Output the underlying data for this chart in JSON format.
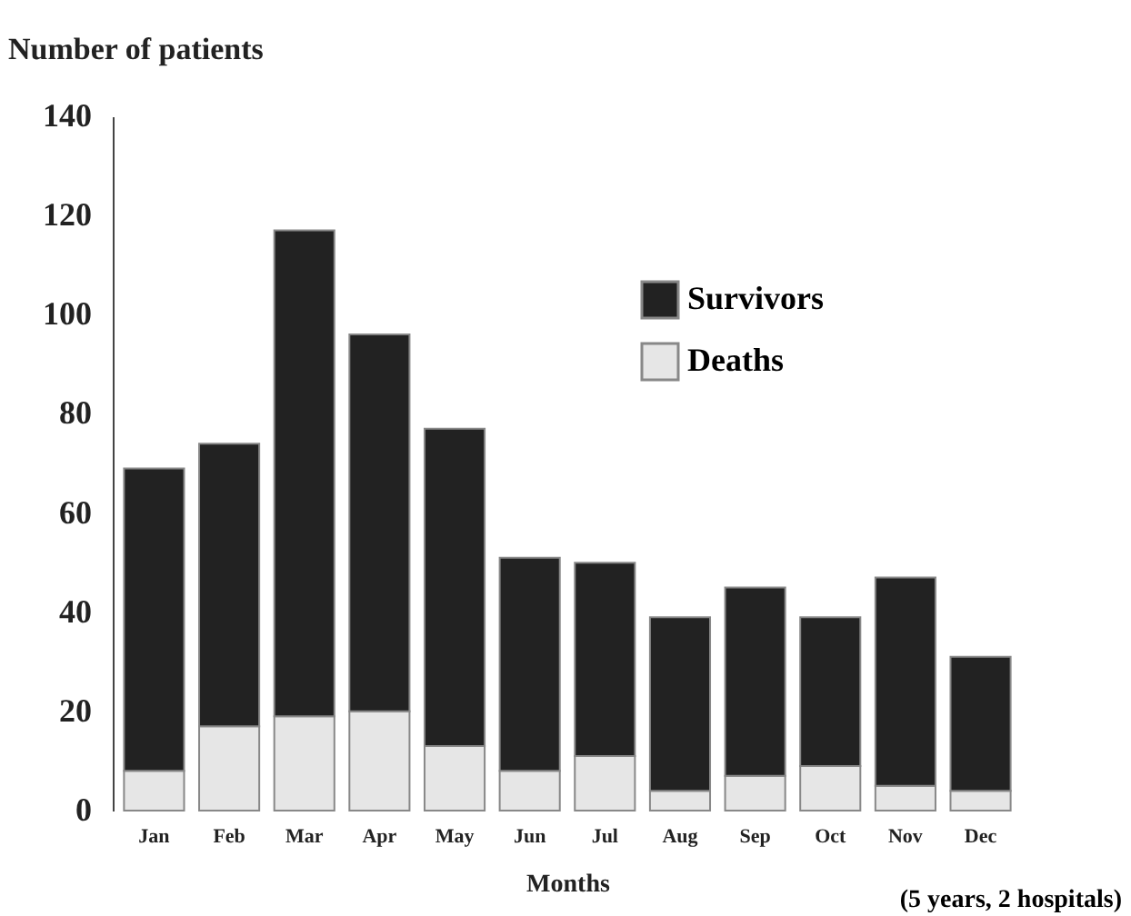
{
  "chart_data": {
    "type": "bar",
    "stacked": true,
    "xlabel": "Months",
    "ylabel": "Number of patients",
    "categories": [
      "Jan",
      "Feb",
      "Mar",
      "Apr",
      "May",
      "Jun",
      "Jul",
      "Aug",
      "Sep",
      "Oct",
      "Nov",
      "Dec"
    ],
    "series": [
      {
        "name": "Deaths",
        "color": "#e6e6e6",
        "values": [
          8,
          17,
          19,
          20,
          13,
          8,
          11,
          4,
          7,
          9,
          5,
          4
        ]
      },
      {
        "name": "Survivors",
        "color": "#222222",
        "values": [
          61,
          57,
          98,
          76,
          64,
          43,
          39,
          35,
          38,
          30,
          42,
          27
        ]
      }
    ],
    "ylim": [
      0,
      140
    ],
    "yticks": [
      0,
      20,
      40,
      60,
      80,
      100,
      120,
      140
    ],
    "legend": "top right",
    "grid": false,
    "annotations": [
      "(5 years, 2 hospitals)"
    ]
  }
}
